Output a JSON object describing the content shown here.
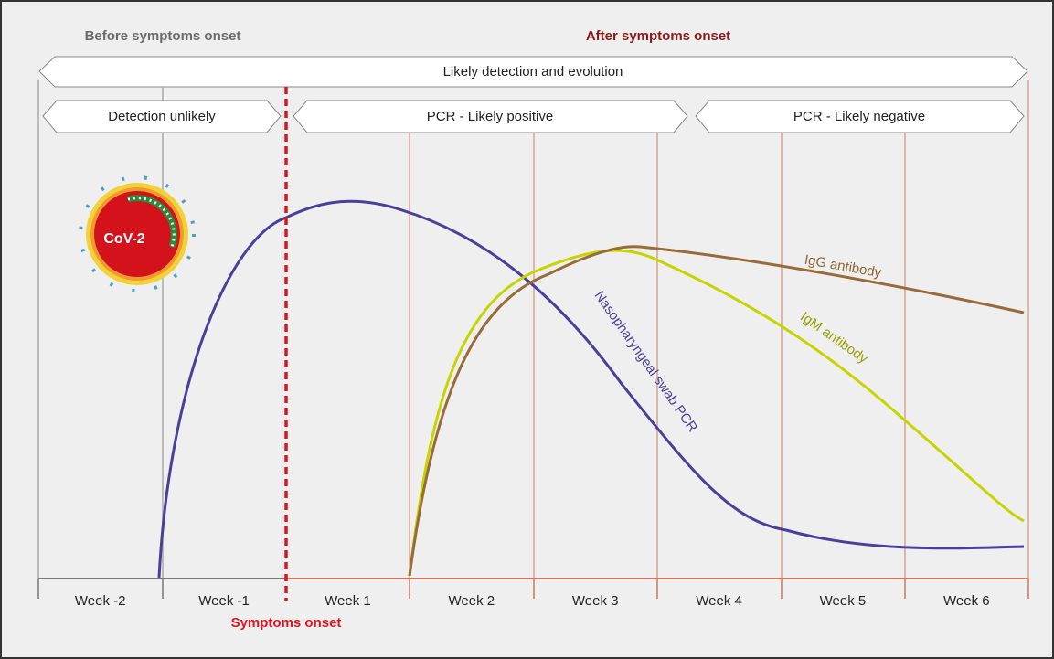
{
  "header": {
    "before": "Before symptoms onset",
    "after": "After symptoms onset"
  },
  "banners": {
    "main": "Likely detection and evolution",
    "phases": [
      "Detection unlikely",
      "PCR - Likely positive",
      "PCR - Likely negative"
    ]
  },
  "virus_label": "CoV-2",
  "curves": {
    "pcr": "Nasopharyngeal swab PCR",
    "igm": "IgM antibody",
    "igg": "IgG antibody"
  },
  "weeks": [
    "Week -2",
    "Week -1",
    "Week 1",
    "Week 2",
    "Week 3",
    "Week 4",
    "Week 5",
    "Week 6"
  ],
  "onset_label": "Symptoms onset"
}
